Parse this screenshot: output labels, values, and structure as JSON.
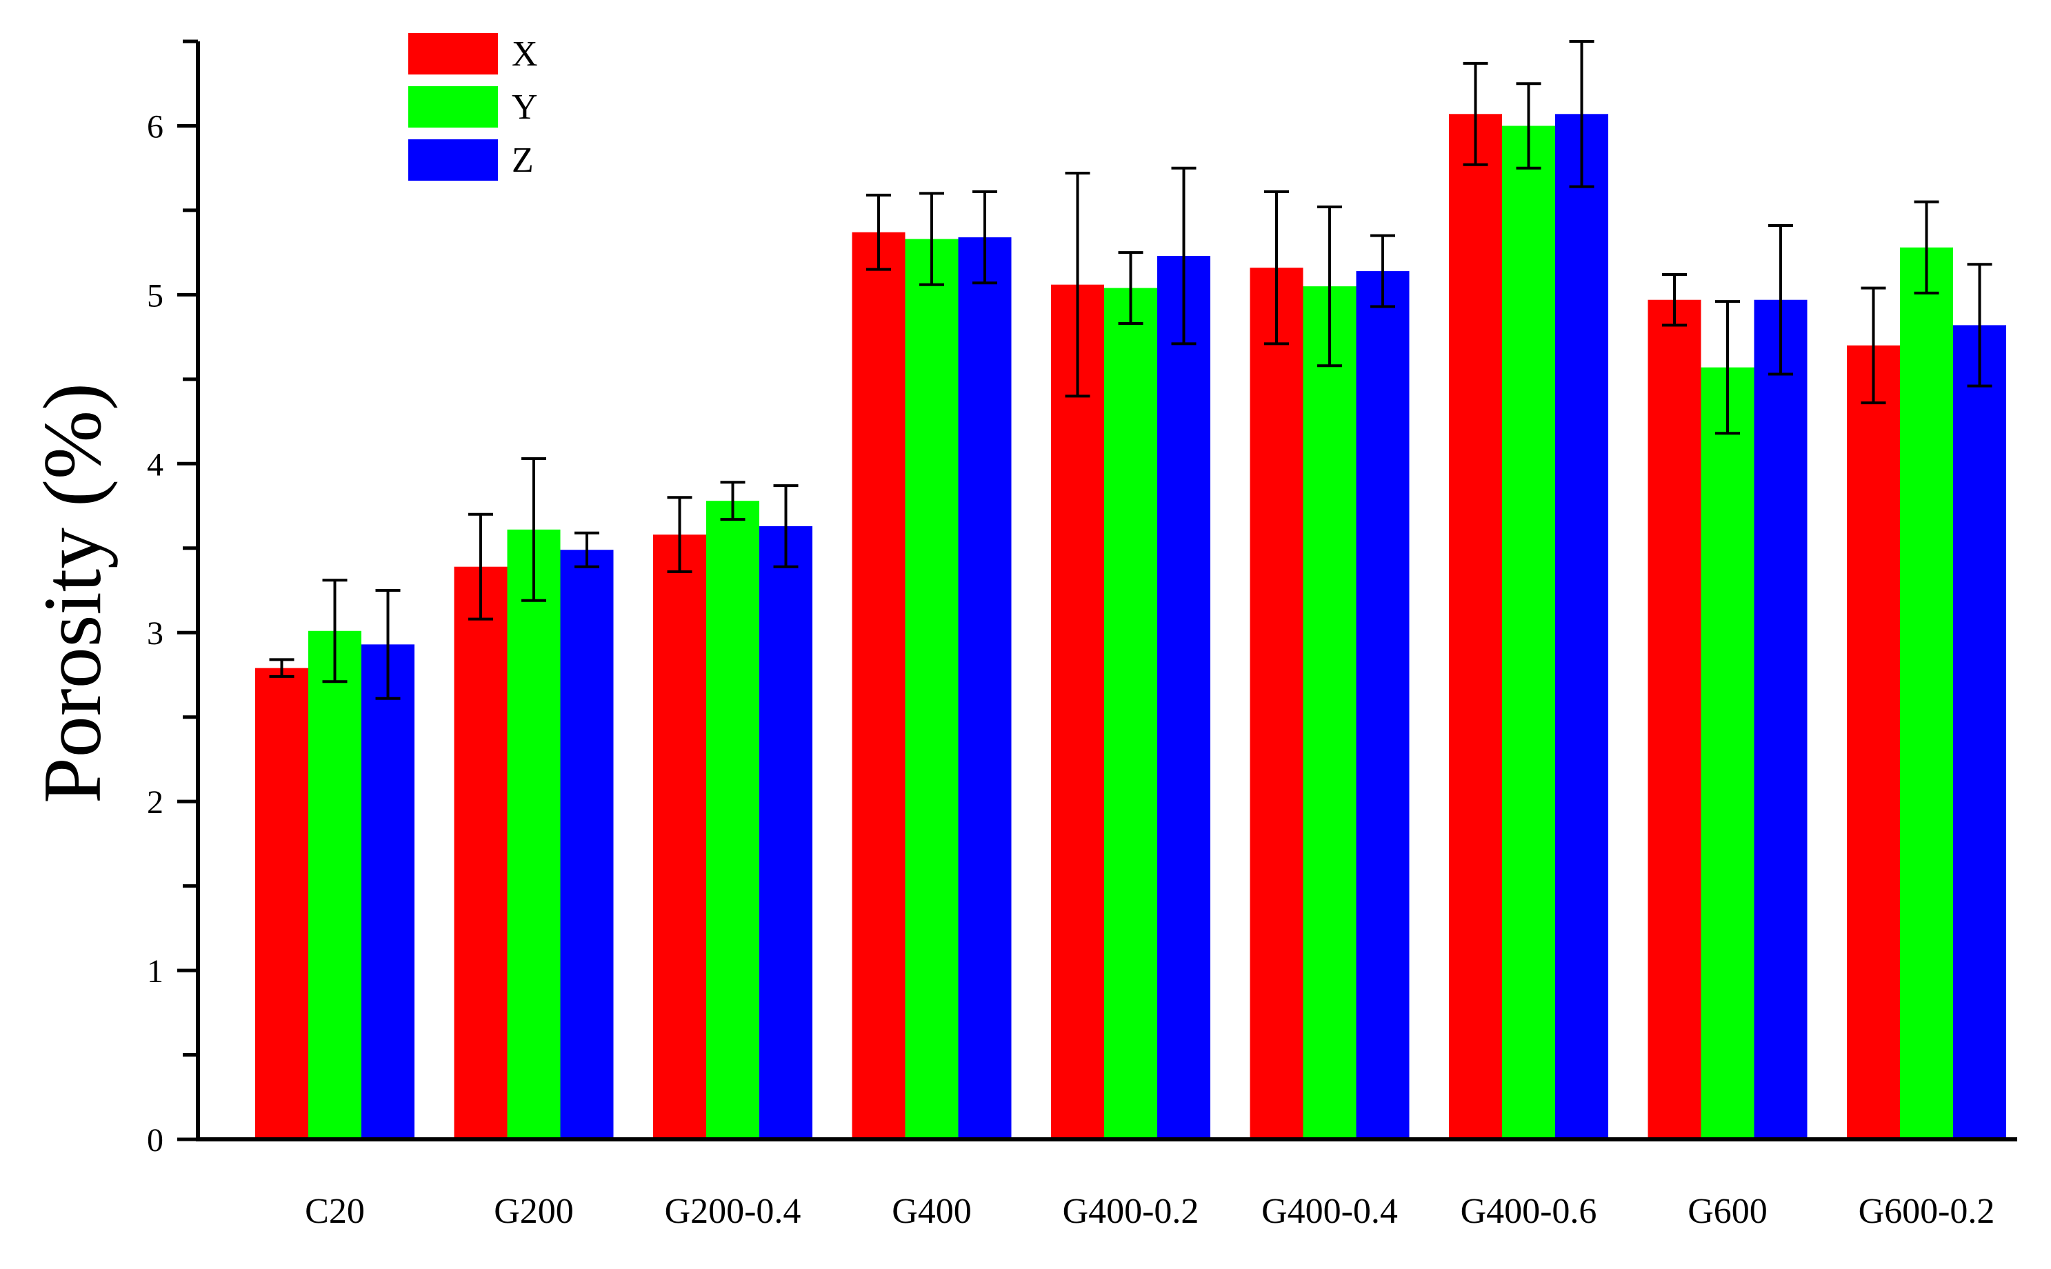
{
  "chart_data": {
    "type": "bar",
    "title": "",
    "xlabel": "",
    "ylabel": "Porosity (%)",
    "ylim": [
      0,
      6.5
    ],
    "yticks": [
      "0",
      "1",
      "2",
      "3",
      "4",
      "5",
      "6"
    ],
    "grid": false,
    "legend_position": "top-left",
    "categories": [
      "C20",
      "G200",
      "G200-0.4",
      "G400",
      "G400-0.2",
      "G400-0.4",
      "G400-0.6",
      "G600",
      "G600-0.2"
    ],
    "series": [
      {
        "name": "X",
        "color": "#ff0000",
        "values": [
          2.79,
          3.39,
          3.58,
          5.37,
          5.06,
          5.16,
          6.07,
          4.97,
          4.7
        ],
        "errors": [
          0.05,
          0.31,
          0.22,
          0.22,
          0.66,
          0.45,
          0.3,
          0.15,
          0.34
        ]
      },
      {
        "name": "Y",
        "color": "#00ff00",
        "values": [
          3.01,
          3.61,
          3.78,
          5.33,
          5.04,
          5.05,
          6.0,
          4.57,
          5.28
        ],
        "errors": [
          0.3,
          0.42,
          0.11,
          0.27,
          0.21,
          0.47,
          0.25,
          0.39,
          0.27
        ]
      },
      {
        "name": "Z",
        "color": "#0000ff",
        "values": [
          2.93,
          3.49,
          3.63,
          5.34,
          5.23,
          5.14,
          6.07,
          4.97,
          4.82
        ],
        "errors": [
          0.32,
          0.1,
          0.24,
          0.27,
          0.52,
          0.21,
          0.43,
          0.44,
          0.36
        ]
      }
    ]
  }
}
